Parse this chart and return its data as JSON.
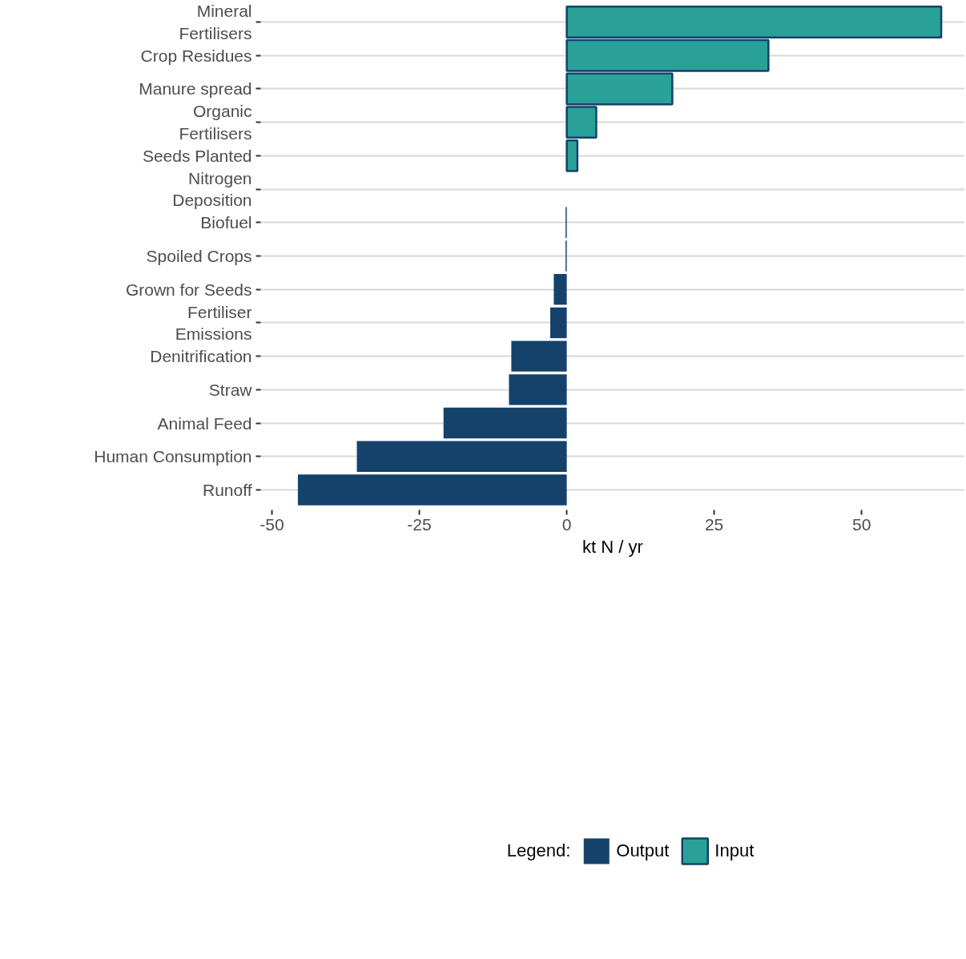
{
  "chart_data": {
    "type": "bar",
    "orientation": "horizontal",
    "categories": [
      "Mineral\nFertilisers",
      "Crop Residues",
      "Manure spread",
      "Organic\nFertilisers",
      "Seeds Planted",
      "Nitrogen\nDeposition",
      "Biofuel",
      "Spoiled Crops",
      "Grown for Seeds",
      "Fertiliser\nEmissions",
      "Denitrification",
      "Straw",
      "Animal Feed",
      "Human Consumption",
      "Runoff"
    ],
    "series": [
      {
        "name": "Output",
        "color": "#14426b",
        "values": [
          null,
          null,
          null,
          null,
          null,
          null,
          -0.2,
          -0.2,
          -2.2,
          -2.8,
          -9.4,
          -9.8,
          -20.9,
          -35.6,
          -45.6
        ]
      },
      {
        "name": "Input",
        "color": "#2aa198",
        "values": [
          63.5,
          34.2,
          17.9,
          5.0,
          1.8,
          null,
          null,
          null,
          null,
          null,
          null,
          null,
          null,
          null,
          null
        ]
      }
    ],
    "xlabel": "kt N / yr",
    "legend_title": "Legend:",
    "legend": "bottom",
    "grid": "y",
    "xlim": [
      -51.9,
      67.5
    ],
    "xticks": [
      -50,
      -25,
      0,
      25,
      50
    ]
  }
}
